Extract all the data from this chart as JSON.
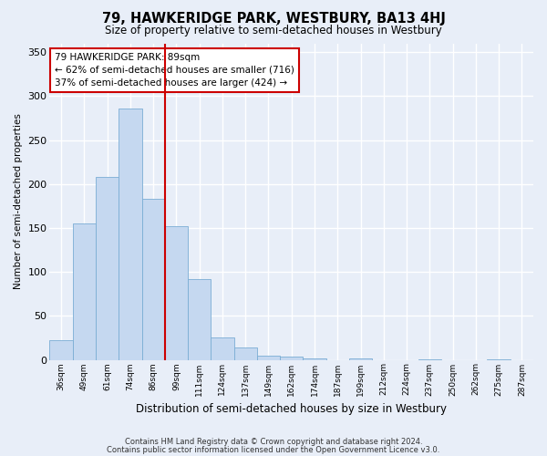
{
  "title": "79, HAWKERIDGE PARK, WESTBURY, BA13 4HJ",
  "subtitle": "Size of property relative to semi-detached houses in Westbury",
  "xlabel": "Distribution of semi-detached houses by size in Westbury",
  "ylabel": "Number of semi-detached properties",
  "categories": [
    "36sqm",
    "49sqm",
    "61sqm",
    "74sqm",
    "86sqm",
    "99sqm",
    "111sqm",
    "124sqm",
    "137sqm",
    "149sqm",
    "162sqm",
    "174sqm",
    "187sqm",
    "199sqm",
    "212sqm",
    "224sqm",
    "237sqm",
    "250sqm",
    "262sqm",
    "275sqm",
    "287sqm"
  ],
  "values": [
    22,
    155,
    208,
    286,
    183,
    152,
    92,
    25,
    14,
    5,
    4,
    2,
    0,
    2,
    0,
    0,
    1,
    0,
    0,
    1,
    0
  ],
  "bar_color": "#c5d8f0",
  "bar_edge_color": "#7aadd4",
  "vline_x": 4.5,
  "vline_color": "#cc0000",
  "annotation_text": "79 HAWKERIDGE PARK: 89sqm\n← 62% of semi-detached houses are smaller (716)\n37% of semi-detached houses are larger (424) →",
  "annotation_box_color": "#ffffff",
  "annotation_box_edge": "#cc0000",
  "ylim": [
    0,
    360
  ],
  "yticks": [
    0,
    50,
    100,
    150,
    200,
    250,
    300,
    350
  ],
  "footer1": "Contains HM Land Registry data © Crown copyright and database right 2024.",
  "footer2": "Contains public sector information licensed under the Open Government Licence v3.0.",
  "bg_color": "#e8eef8",
  "grid_color": "#ffffff"
}
